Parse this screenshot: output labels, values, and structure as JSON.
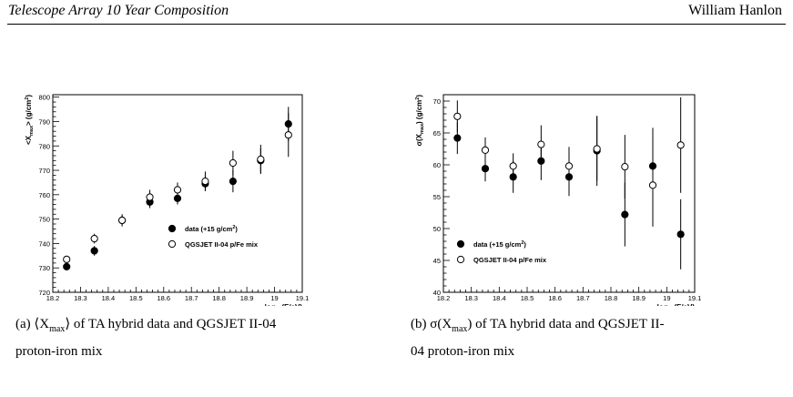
{
  "header": {
    "title": "Telescope Array 10 Year Composition",
    "author": "William Hanlon"
  },
  "chart_data": [
    {
      "type": "scatter",
      "ylabel": "<X_max> (g/cm²)",
      "xlabel": "log10(E/eV)",
      "xlim": [
        18.2,
        19.1
      ],
      "ylim": [
        720,
        801
      ],
      "xticks": [
        "18.2",
        "18.3",
        "18.4",
        "18.5",
        "18.6",
        "18.7",
        "18.8",
        "18.9",
        "19",
        "19.1"
      ],
      "yticks": [
        "720",
        "730",
        "740",
        "750",
        "760",
        "770",
        "780",
        "790",
        "800"
      ],
      "legend_position": "lower-right",
      "series": [
        {
          "name": "data (+15 g/cm²)",
          "marker": "filled-circle",
          "x": [
            18.25,
            18.35,
            18.45,
            18.55,
            18.65,
            18.75,
            18.85,
            18.95,
            19.05
          ],
          "y": [
            730.5,
            737,
            749.5,
            757,
            758.5,
            764.5,
            765.5,
            774,
            789
          ],
          "err": [
            1.5,
            2,
            2,
            2.5,
            2.5,
            3,
            4.5,
            5,
            7
          ]
        },
        {
          "name": "QGSJET II-04 p/Fe mix",
          "marker": "open-circle",
          "x": [
            18.25,
            18.35,
            18.45,
            18.55,
            18.65,
            18.75,
            18.85,
            18.95,
            19.05
          ],
          "y": [
            733.5,
            742,
            749.5,
            759,
            762,
            765.5,
            773,
            774.5,
            784.5
          ],
          "err": [
            1.5,
            2,
            2.5,
            3,
            3,
            4,
            5,
            6,
            9
          ]
        }
      ]
    },
    {
      "type": "scatter",
      "ylabel": "σ(X_max) (g/cm²)",
      "xlabel": "log10(E/eV)",
      "xlim": [
        18.2,
        19.1
      ],
      "ylim": [
        40,
        71
      ],
      "xticks": [
        "18.2",
        "18.3",
        "18.4",
        "18.5",
        "18.6",
        "18.7",
        "18.8",
        "18.9",
        "19",
        "19.1"
      ],
      "yticks": [
        "40",
        "45",
        "50",
        "55",
        "60",
        "65",
        "70"
      ],
      "legend_position": "lower-left",
      "series": [
        {
          "name": "data (+15 g/cm²)",
          "marker": "filled-circle",
          "x": [
            18.25,
            18.35,
            18.45,
            18.55,
            18.65,
            18.75,
            18.85,
            18.95,
            19.05
          ],
          "y": [
            64.2,
            59.4,
            58.1,
            60.6,
            58.1,
            62.2,
            52.2,
            59.8,
            49.1
          ],
          "err": [
            2.5,
            2,
            2.5,
            3,
            3,
            5.5,
            5,
            6,
            5.5
          ]
        },
        {
          "name": "QGSJET II-04 p/Fe mix",
          "marker": "open-circle",
          "x": [
            18.25,
            18.35,
            18.45,
            18.55,
            18.65,
            18.75,
            18.85,
            18.95,
            19.05
          ],
          "y": [
            67.6,
            62.3,
            59.8,
            63.2,
            59.8,
            62.5,
            59.7,
            56.8,
            63.1
          ],
          "err": [
            2.5,
            2,
            2,
            3,
            3,
            5,
            5,
            6.5,
            7.5
          ]
        }
      ]
    }
  ],
  "captions": [
    {
      "label": "(a)",
      "symbol": "⟨X",
      "sub": "max",
      "symbol_close": "⟩",
      "text": "of TA hybrid data and QGSJET II-04",
      "line2": "proton-iron mix"
    },
    {
      "label": "(b)",
      "symbol": "σ(X",
      "sub": "max",
      "symbol_close": ")",
      "text": "of TA hybrid data and QGSJET II-",
      "line2": "04 proton-iron mix"
    }
  ]
}
